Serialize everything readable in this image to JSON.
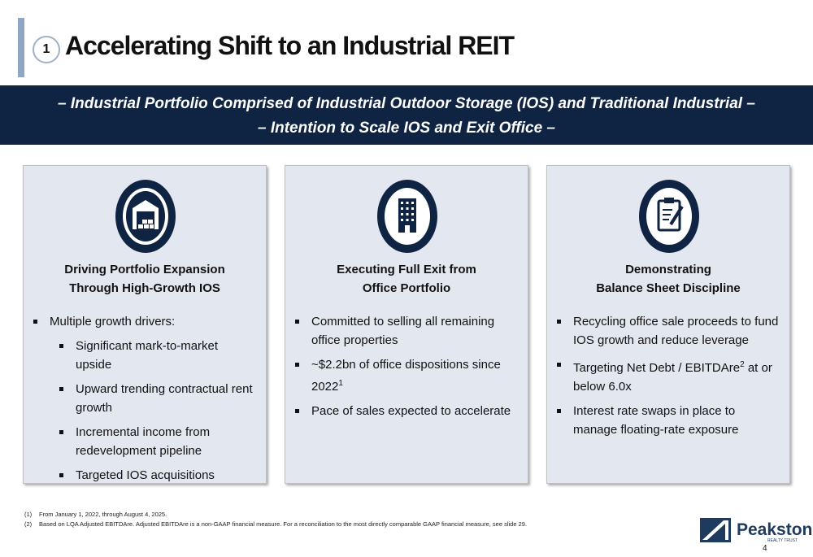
{
  "header": {
    "number": "1",
    "title": "Accelerating Shift to an Industrial REIT"
  },
  "banner": {
    "lines": [
      "– Industrial Portfolio Comprised of Industrial Outdoor Storage (IOS) and Traditional Industrial –",
      "– Intention to Scale IOS and Exit Office –"
    ]
  },
  "cards": [
    {
      "heading": [
        "Driving Portfolio Expansion",
        "Through High-Growth IOS"
      ],
      "bullets": [
        {
          "text": "Multiple growth drivers:",
          "sub": [
            "Significant mark-to-market upside",
            "Upward trending contractual rent growth",
            "Incremental income from redevelopment pipeline",
            "Targeted IOS acquisitions"
          ]
        }
      ]
    },
    {
      "heading": [
        "Executing Full Exit from",
        "Office Portfolio"
      ],
      "bullets": [
        {
          "text": "Committed to selling all remaining office properties"
        },
        {
          "text": "~$2.2bn of office dispositions since 2022",
          "sup": "1"
        },
        {
          "text": "Pace of sales expected to accelerate"
        }
      ]
    },
    {
      "heading": [
        "Demonstrating",
        "Balance Sheet Discipline"
      ],
      "bullets": [
        {
          "text": "Recycling office sale proceeds to fund IOS growth and reduce leverage"
        },
        {
          "text": "Targeting Net Debt / EBITDAre",
          "sup": "2",
          "after": " at or below 6.0x"
        },
        {
          "text": "Interest rate swaps in place to manage floating-rate exposure"
        }
      ]
    }
  ],
  "footnotes": [
    {
      "marker": "(1)",
      "text": "From January 1, 2022, through August 4, 2025."
    },
    {
      "marker": "(2)",
      "text": "Based on LQA Adjusted EBITDAre. Adjusted EBITDAre is a non-GAAP financial measure. For a reconciliation to the most directly comparable GAAP financial measure, see slide 29."
    }
  ],
  "logo": {
    "name": "Peakstone",
    "tagline": "REALTY TRUST"
  },
  "page_number": "4"
}
